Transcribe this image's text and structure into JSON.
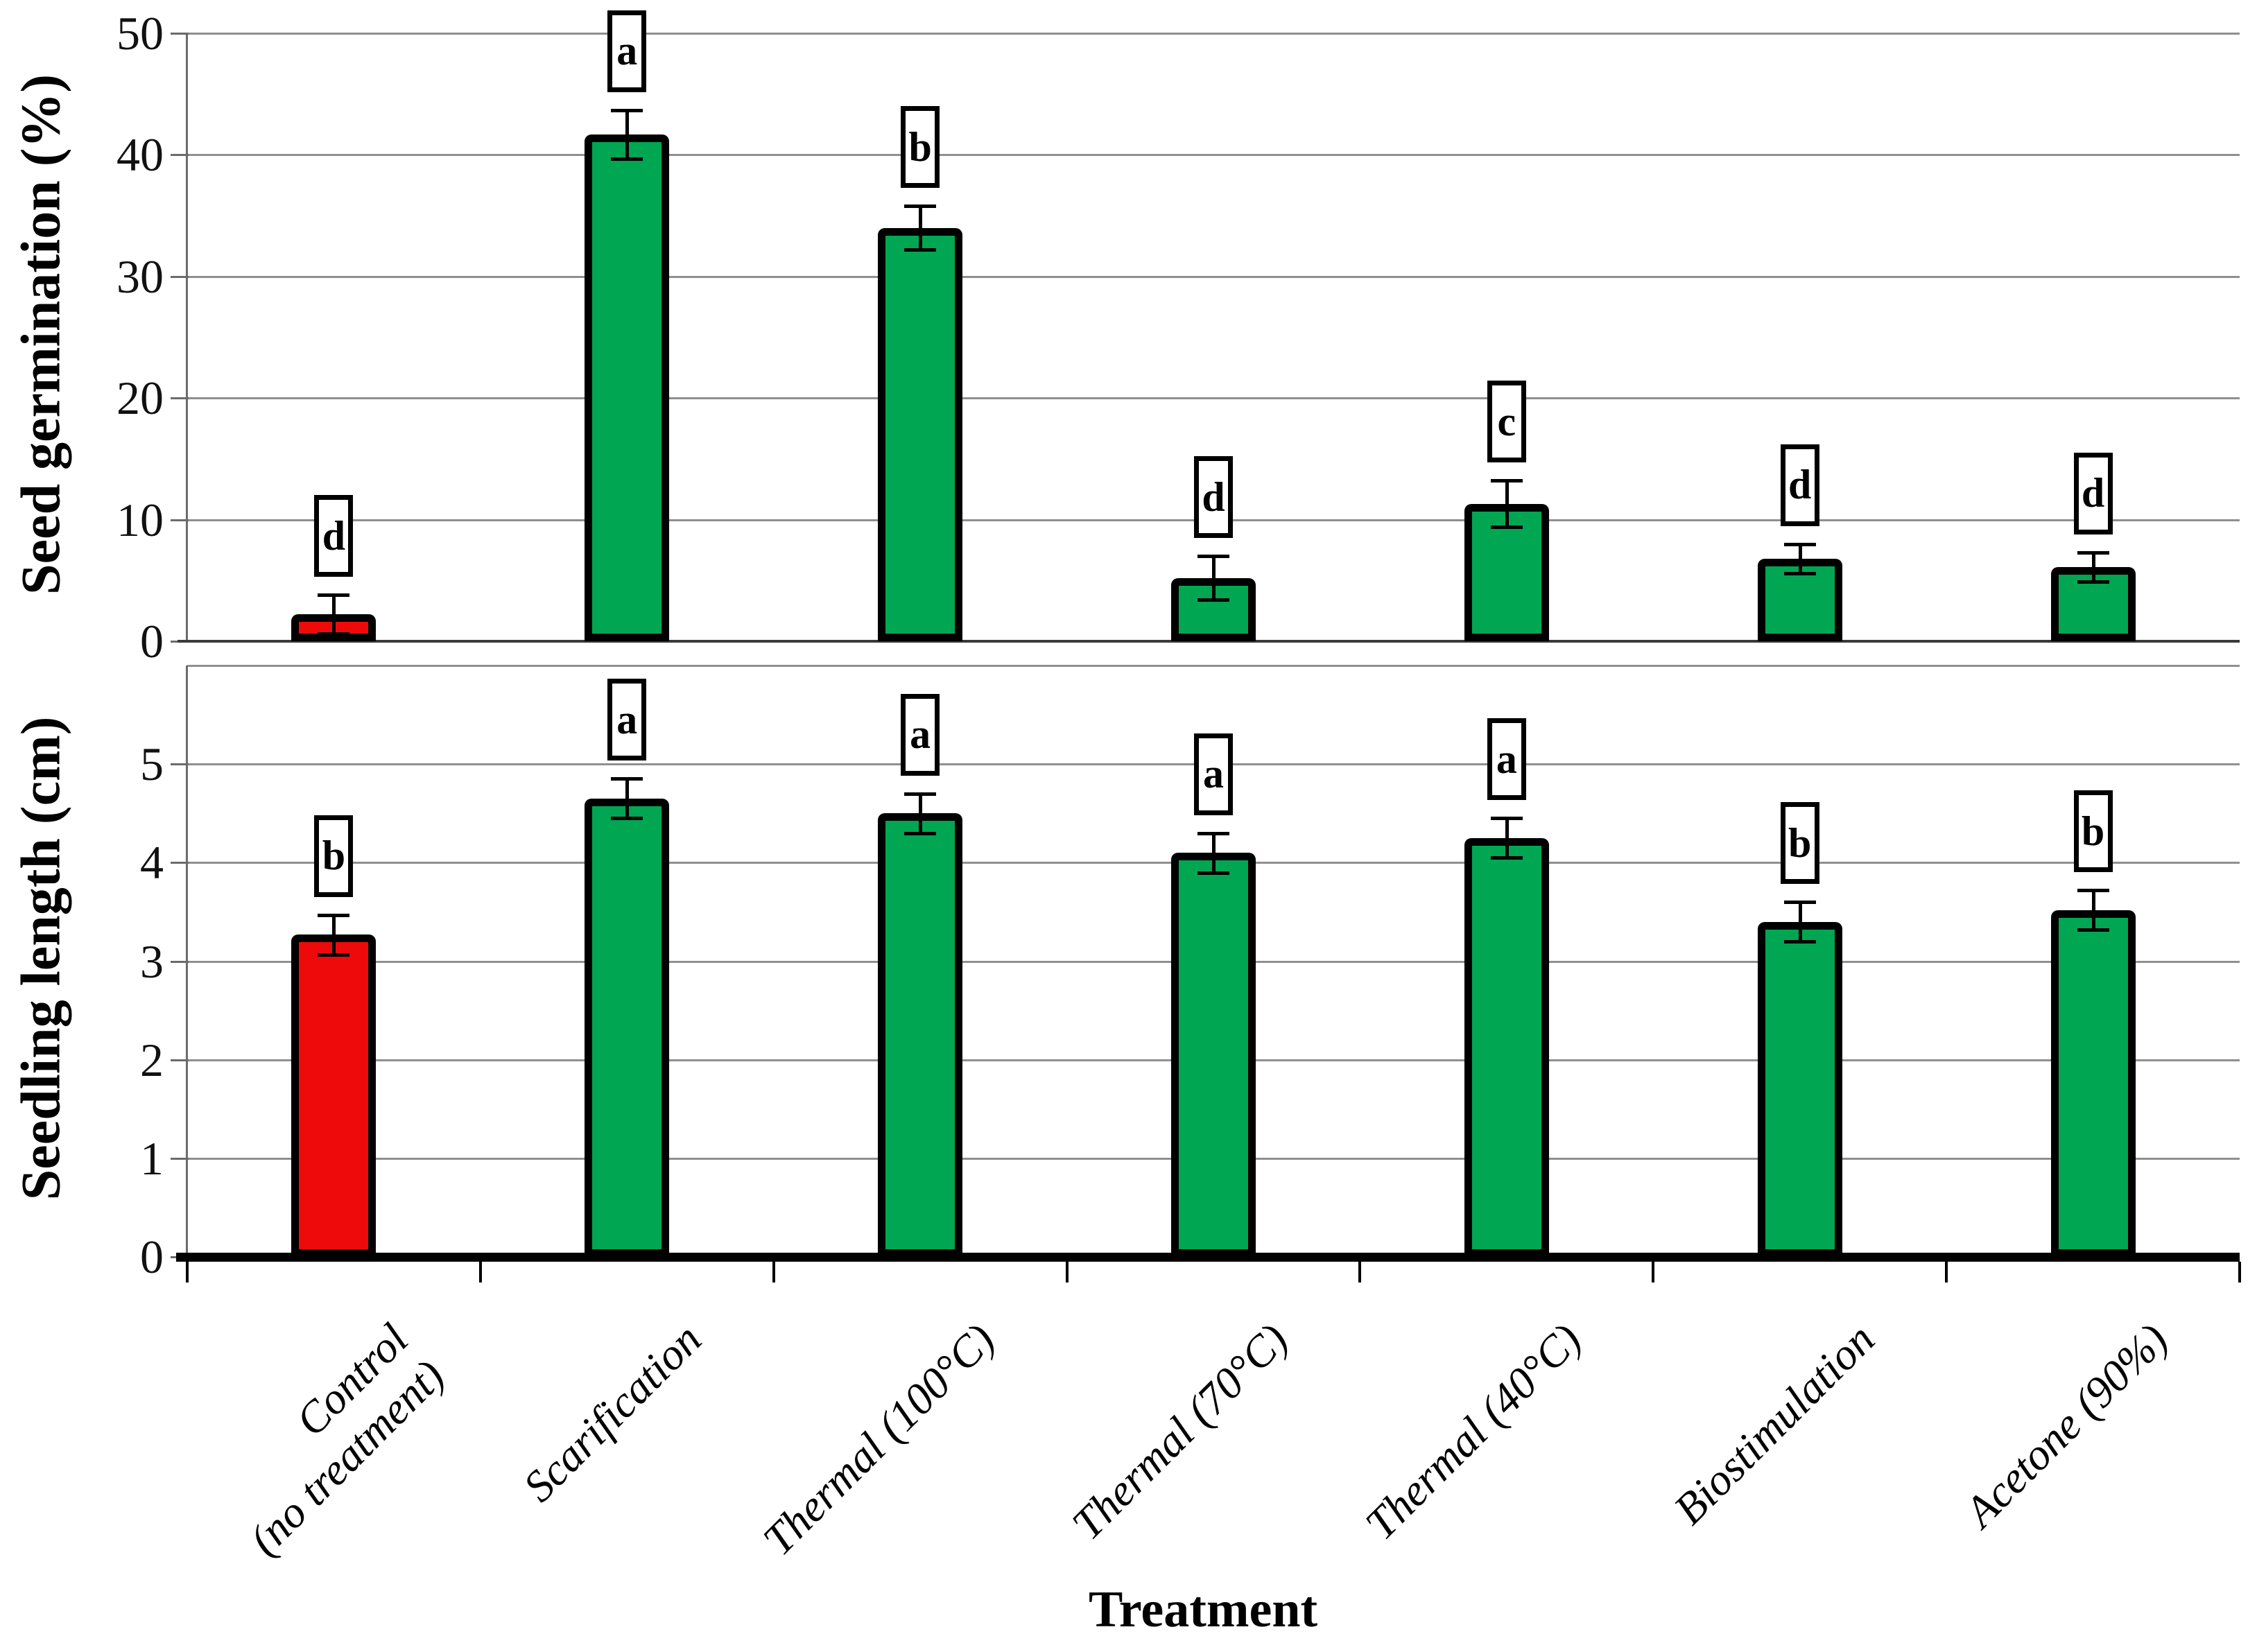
{
  "colors": {
    "bar_green": "#00A651",
    "bar_red": "#EE0A0A",
    "bar_border": "#000000",
    "gridline": "#8f8f8f",
    "background": "#ffffff"
  },
  "x_axis_title": "Treatment",
  "categories": [
    "Control\n(no treatment)",
    "Scarification",
    "Thermal  (100°C)",
    "Thermal  (70°C)",
    "Thermal  (40°C)",
    "Biostimulation",
    "Acetone (90%)"
  ],
  "chart_data": [
    {
      "type": "bar",
      "title": "",
      "ylabel": "Seed germination (%)",
      "xlabel": "",
      "categories": [
        "Control (no treatment)",
        "Scarification",
        "Thermal (100°C)",
        "Thermal (70°C)",
        "Thermal (40°C)",
        "Biostimulation",
        "Acetone (90%)"
      ],
      "values": [
        2.2,
        41.7,
        34.0,
        5.2,
        11.3,
        6.8,
        6.1
      ],
      "errors": [
        1.6,
        2.0,
        1.8,
        1.8,
        1.9,
        1.2,
        1.2
      ],
      "letters": [
        "d",
        "a",
        "b",
        "d",
        "c",
        "d",
        "d"
      ],
      "bar_colors": [
        "red",
        "green",
        "green",
        "green",
        "green",
        "green",
        "green"
      ],
      "ylim": [
        0,
        50
      ],
      "yticks": [
        "0",
        "10",
        "20",
        "30",
        "40",
        "50"
      ],
      "grid": "horizontal",
      "legend": "none"
    },
    {
      "type": "bar",
      "title": "",
      "ylabel": "Seedling length (cm)",
      "xlabel": "Treatment",
      "categories": [
        "Control (no treatment)",
        "Scarification",
        "Thermal (100°C)",
        "Thermal (70°C)",
        "Thermal (40°C)",
        "Biostimulation",
        "Acetone (90%)"
      ],
      "values": [
        3.27,
        4.65,
        4.5,
        4.1,
        4.25,
        3.4,
        3.52
      ],
      "errors": [
        0.2,
        0.2,
        0.2,
        0.2,
        0.2,
        0.2,
        0.2
      ],
      "letters": [
        "b",
        "a",
        "a",
        "a",
        "a",
        "b",
        "b"
      ],
      "bar_colors": [
        "red",
        "green",
        "green",
        "green",
        "green",
        "green",
        "green"
      ],
      "ylim": [
        0,
        6
      ],
      "yticks": [
        "0",
        "1",
        "2",
        "3",
        "4",
        "5"
      ],
      "grid": "horizontal",
      "legend": "none"
    }
  ]
}
